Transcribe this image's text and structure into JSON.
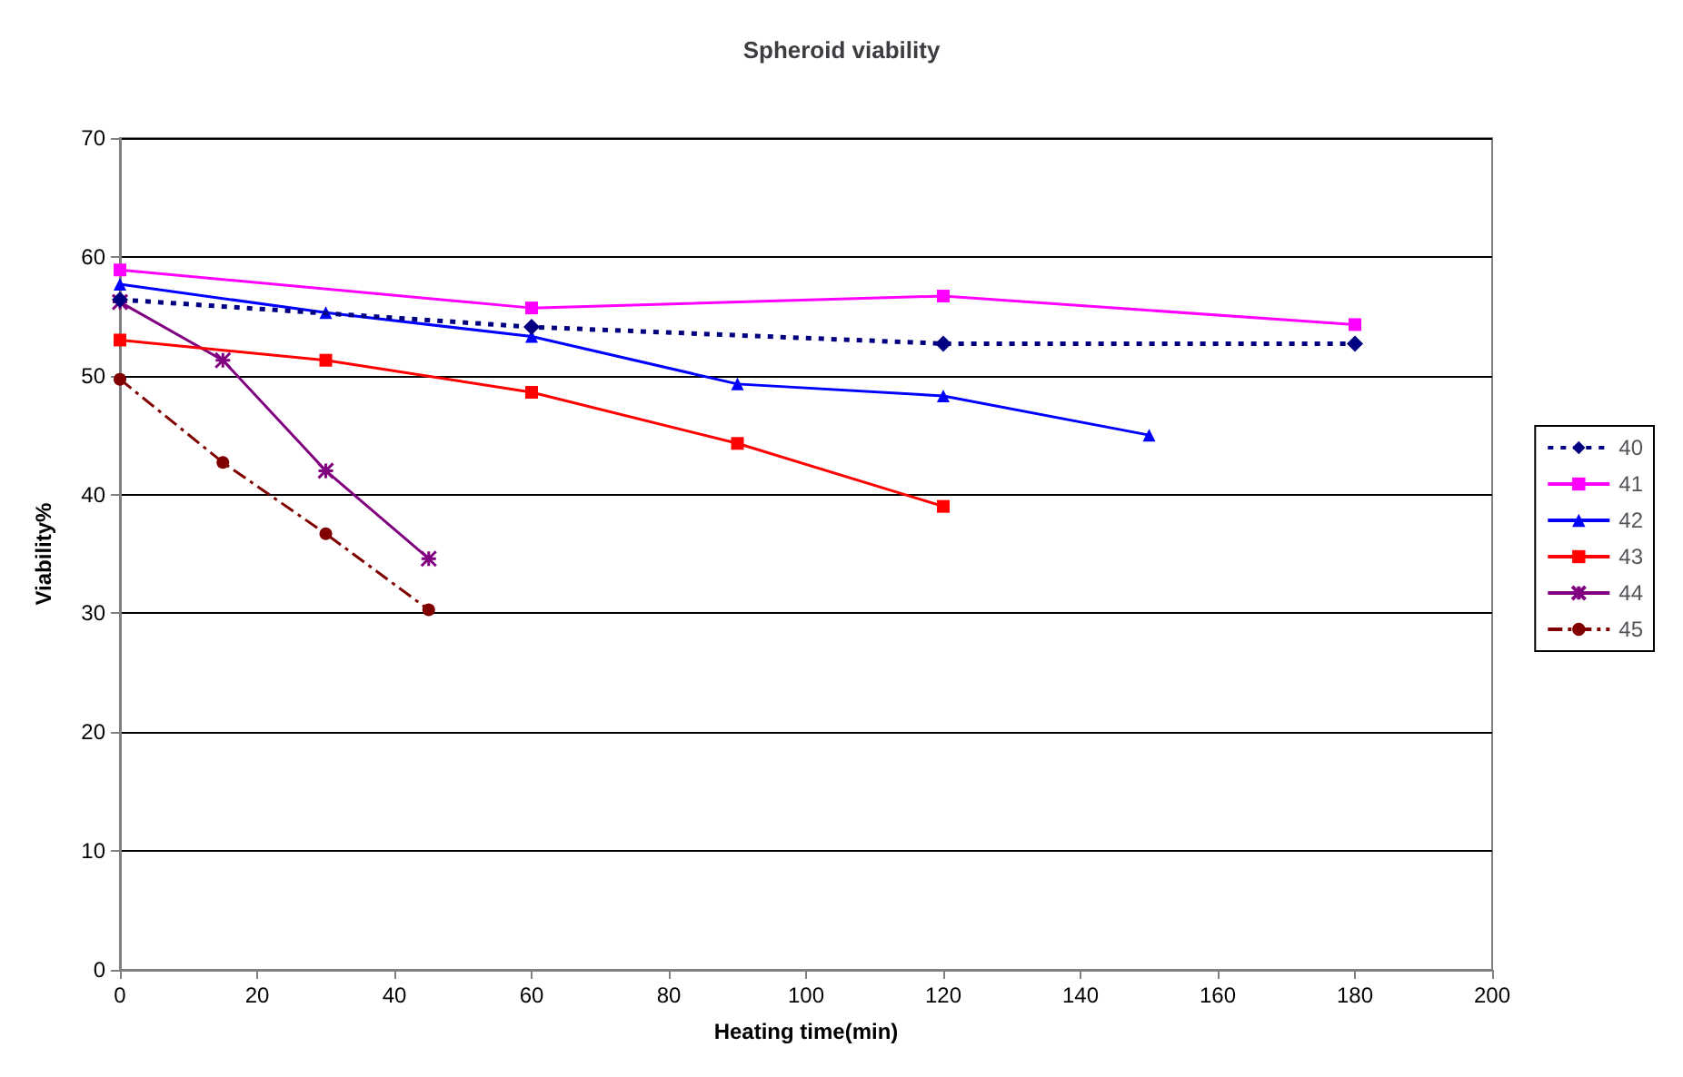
{
  "chart_data": {
    "type": "line",
    "title": "Spheroid viability",
    "xlabel": "Heating time(min)",
    "ylabel": "Viability%",
    "xlim": [
      0,
      200
    ],
    "xticks": [
      0,
      20,
      40,
      60,
      80,
      100,
      120,
      140,
      160,
      180,
      200
    ],
    "ylim": [
      0,
      70
    ],
    "yticks": [
      0,
      10,
      20,
      30,
      40,
      50,
      60,
      70
    ],
    "grid": "y",
    "legend": "right",
    "series": [
      {
        "name": "40",
        "color": "#000080",
        "marker": "diamond",
        "line_style": "dotted",
        "x": [
          0,
          60,
          120,
          180
        ],
        "values": [
          56.4,
          54.1,
          52.7,
          52.7
        ]
      },
      {
        "name": "41",
        "color": "#ff00ff",
        "marker": "square",
        "line_style": "solid",
        "x": [
          0,
          60,
          120,
          180
        ],
        "values": [
          58.9,
          55.7,
          56.7,
          54.3
        ]
      },
      {
        "name": "42",
        "color": "#0000ff",
        "marker": "triangle",
        "line_style": "solid",
        "x": [
          0,
          30,
          60,
          90,
          120,
          150
        ],
        "values": [
          57.7,
          55.3,
          53.3,
          49.3,
          48.3,
          45
        ]
      },
      {
        "name": "43",
        "color": "#ff0000",
        "marker": "square",
        "line_style": "solid",
        "x": [
          0,
          30,
          60,
          90,
          120
        ],
        "values": [
          53,
          51.3,
          48.6,
          44.3,
          39
        ]
      },
      {
        "name": "44",
        "color": "#800080",
        "marker": "cross",
        "line_style": "solid",
        "x": [
          0,
          15,
          30,
          45
        ],
        "values": [
          56.2,
          51.3,
          42,
          34.6
        ]
      },
      {
        "name": "45",
        "color": "#800000",
        "marker": "circle",
        "line_style": "dashed",
        "x": [
          0,
          15,
          30,
          45
        ],
        "values": [
          49.7,
          42.7,
          36.7,
          30.3
        ]
      }
    ]
  }
}
